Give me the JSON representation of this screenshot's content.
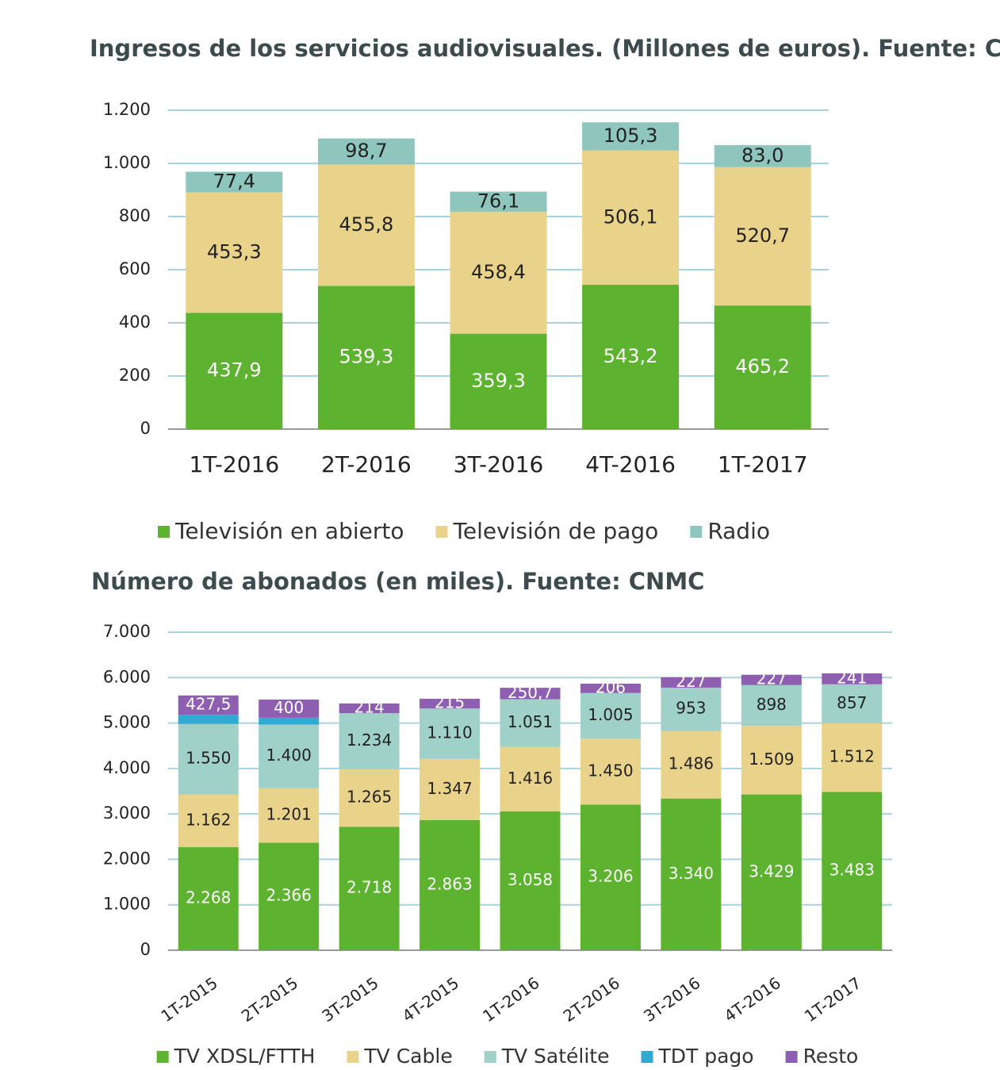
{
  "chart_data": [
    {
      "type": "stacked_bar",
      "title": "Ingresos de los servicios audiovisuales. (Millones de euros). Fuente: CNMC",
      "categories": [
        "1T-2016",
        "2T-2016",
        "3T-2016",
        "4T-2016",
        "1T-2017"
      ],
      "series": [
        {
          "name": "Televisión en abierto",
          "color": "#5db32f",
          "values": [
            437.9,
            539.3,
            359.3,
            543.2,
            465.2
          ],
          "value_labels": [
            "437,9",
            "539,3",
            "359,3",
            "543,2",
            "465,2"
          ]
        },
        {
          "name": "Televisión de pago",
          "color": "#e9d38a",
          "values": [
            453.3,
            455.8,
            458.4,
            506.1,
            520.7
          ],
          "value_labels": [
            "453,3",
            "455,8",
            "458,4",
            "506,1",
            "520,7"
          ]
        },
        {
          "name": "Radio",
          "color": "#8ec6bd",
          "values": [
            77.4,
            98.7,
            76.1,
            105.3,
            83.0
          ],
          "value_labels": [
            "77,4",
            "98,7",
            "76,1",
            "105,3",
            "83,0"
          ]
        }
      ],
      "ylim": [
        0,
        1200
      ],
      "yticks": [
        0,
        200,
        400,
        600,
        800,
        {
          "value": 1000,
          "label": "1.000"
        },
        {
          "value": 1200,
          "label": "1.200"
        }
      ],
      "grid": true,
      "legend": "bottom"
    },
    {
      "type": "stacked_bar",
      "title": "Número de abonados (en miles). Fuente: CNMC",
      "categories": [
        "1T-2015",
        "2T-2015",
        "3T-2015",
        "4T-2015",
        "1T-2016",
        "2T-2016",
        "3T-2016",
        "4T-2016",
        "1T-2017"
      ],
      "series": [
        {
          "name": "TV XDSL/FTTH",
          "color": "#5db32f",
          "values": [
            2268,
            2366,
            2718,
            2863,
            3058,
            3206,
            3340,
            3429,
            3483
          ],
          "value_labels": [
            "2.268",
            "2.366",
            "2.718",
            "2.863",
            "3.058",
            "3.206",
            "3.340",
            "3.429",
            "3.483"
          ]
        },
        {
          "name": "TV Cable",
          "color": "#e9d38a",
          "values": [
            1162,
            1201,
            1265,
            1347,
            1416,
            1450,
            1486,
            1509,
            1512
          ],
          "value_labels": [
            "1.162",
            "1.201",
            "1.265",
            "1.347",
            "1.416",
            "1.450",
            "1.486",
            "1.509",
            "1.512"
          ]
        },
        {
          "name": "TV Satélite",
          "color": "#9fd1c8",
          "values": [
            1550,
            1400,
            1234,
            1110,
            1051,
            1005,
            953,
            898,
            857
          ],
          "value_labels": [
            "1.550",
            "1.400",
            "1.234",
            "1.110",
            "1.051",
            "1.005",
            "953",
            "898",
            "857"
          ]
        },
        {
          "name": "TDT pago",
          "color": "#31a9d3",
          "values": [
            200,
            150,
            0,
            0,
            0,
            0,
            0,
            0,
            0
          ]
        },
        {
          "name": "Resto",
          "color": "#8e5fb0",
          "values": [
            427.5,
            400,
            214,
            215,
            250.7,
            206,
            227,
            227,
            241
          ],
          "value_labels": [
            "427,5",
            "400",
            "214",
            "215",
            "250,7",
            "206",
            "227",
            "227",
            "241"
          ]
        }
      ],
      "ylim": [
        0,
        7000
      ],
      "yticks": [
        0,
        {
          "value": 1000,
          "label": "1.000"
        },
        {
          "value": 2000,
          "label": "2.000"
        },
        {
          "value": 3000,
          "label": "3.000"
        },
        {
          "value": 4000,
          "label": "4.000"
        },
        {
          "value": 5000,
          "label": "5.000"
        },
        {
          "value": 6000,
          "label": "6.000"
        },
        {
          "value": 7000,
          "label": "7.000"
        }
      ],
      "grid": true,
      "legend": "bottom"
    }
  ]
}
